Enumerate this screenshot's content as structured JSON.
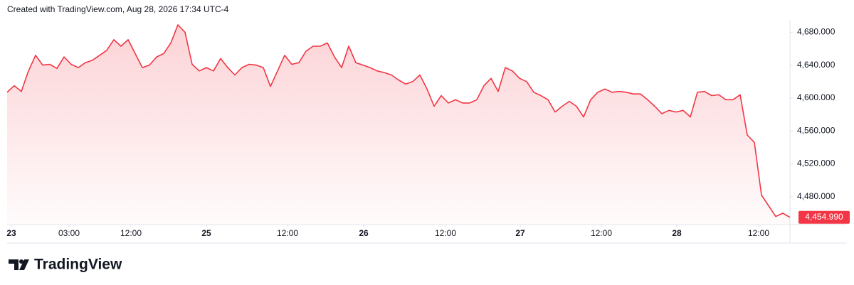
{
  "chart_data": {
    "type": "area",
    "title": "Created with TradingView.com, Aug 28, 2026 17:34 UTC-4",
    "series": [
      {
        "name": null,
        "color": "#f23645",
        "values": [
          4607,
          4615,
          4608,
          4633,
          4652,
          4640,
          4641,
          4636,
          4650,
          4641,
          4637,
          4643,
          4646,
          4652,
          4658,
          4671,
          4663,
          4671,
          4654,
          4637,
          4640,
          4650,
          4654,
          4667,
          4689,
          4680,
          4641,
          4633,
          4637,
          4633,
          4648,
          4637,
          4628,
          4637,
          4641,
          4640,
          4637,
          4614,
          4633,
          4652,
          4641,
          4643,
          4657,
          4663,
          4663,
          4667,
          4650,
          4637,
          4663,
          4643,
          4640,
          4637,
          4633,
          4631,
          4628,
          4622,
          4617,
          4620,
          4628,
          4611,
          4590,
          4603,
          4594,
          4598,
          4594,
          4594,
          4598,
          4615,
          4624,
          4608,
          4637,
          4633,
          4624,
          4620,
          4607,
          4603,
          4598,
          4583,
          4590,
          4596,
          4590,
          4577,
          4598,
          4607,
          4611,
          4607,
          4608,
          4607,
          4605,
          4605,
          4598,
          4590,
          4581,
          4585,
          4583,
          4585,
          4577,
          4607,
          4608,
          4603,
          4604,
          4598,
          4598,
          4604,
          4555,
          4546,
          4482,
          4469,
          4456,
          4460,
          4454.99
        ]
      }
    ],
    "xlim": [
      0,
      110
    ],
    "xticks": [
      {
        "value": 0.6,
        "label": "23"
      },
      {
        "value": 8.7,
        "label": "03:00"
      },
      {
        "value": 17.4,
        "label": "12:00"
      },
      {
        "value": 28,
        "label": "25"
      },
      {
        "value": 39.4,
        "label": "12:00"
      },
      {
        "value": 50.1,
        "label": "26"
      },
      {
        "value": 61.6,
        "label": "12:00"
      },
      {
        "value": 72.1,
        "label": "27"
      },
      {
        "value": 83.5,
        "label": "12:00"
      },
      {
        "value": 94.1,
        "label": "28"
      },
      {
        "value": 105.6,
        "label": "12:00"
      }
    ],
    "ylim": [
      4447,
      4695
    ],
    "yticks": [
      {
        "value": 4480,
        "label": "4,480.000"
      },
      {
        "value": 4520,
        "label": "4,520.000"
      },
      {
        "value": 4560,
        "label": "4,560.000"
      },
      {
        "value": 4600,
        "label": "4,600.000"
      },
      {
        "value": 4640,
        "label": "4,640.000"
      },
      {
        "value": 4680,
        "label": "4,680.000"
      }
    ],
    "annotations": [
      {
        "value": 4454.99,
        "label": "4,454.990"
      }
    ],
    "grid": false
  },
  "footer": {
    "brand": "TradingView"
  }
}
